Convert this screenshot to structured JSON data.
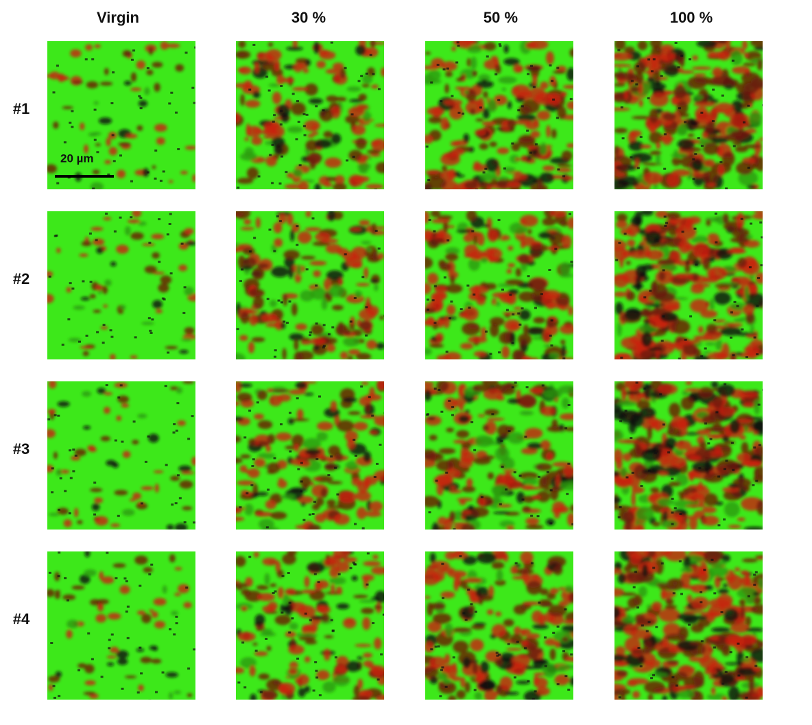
{
  "columns": [
    "Virgin",
    "30 %",
    "50 %",
    "100 %"
  ],
  "rows": [
    "#1",
    "#2",
    "#3",
    "#4"
  ],
  "scale_bar": "20 µm"
}
